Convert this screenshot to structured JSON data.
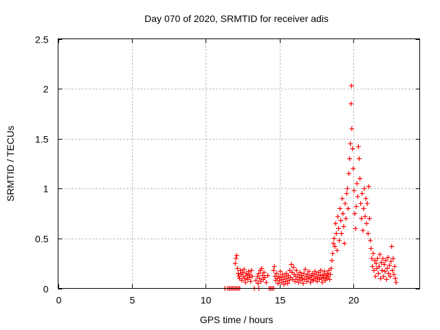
{
  "chart_data": {
    "type": "scatter",
    "title": "Day 070 of 2020, SRMTID for receiver adis",
    "xlabel": "GPS time / hours",
    "ylabel": "SRMTID / TECUs",
    "xlim": [
      0,
      24.5
    ],
    "ylim": [
      0,
      2.5
    ],
    "x_ticks": [
      0,
      5,
      10,
      15,
      20
    ],
    "x_tick_labels": [
      "0",
      "5",
      "10",
      "15",
      "20"
    ],
    "y_ticks": [
      0,
      0.5,
      1,
      1.5,
      2,
      2.5
    ],
    "y_tick_labels": [
      "0",
      "0.5",
      "1",
      "1.5",
      "2",
      "2.5"
    ],
    "grid": true,
    "marker": "+",
    "marker_color": "#ff0000",
    "series": [
      {
        "name": "SRMTID",
        "points": [
          [
            11.3,
            0.0
          ],
          [
            11.5,
            0.0
          ],
          [
            11.6,
            0.0
          ],
          [
            11.7,
            0.0
          ],
          [
            11.8,
            0.0
          ],
          [
            11.9,
            0.0
          ],
          [
            12.0,
            0.0
          ],
          [
            12.1,
            0.0
          ],
          [
            12.2,
            0.0
          ],
          [
            12.3,
            0.0
          ],
          [
            13.3,
            0.0
          ],
          [
            13.6,
            0.0
          ],
          [
            14.3,
            0.0
          ],
          [
            14.4,
            0.0
          ],
          [
            14.5,
            0.0
          ],
          [
            14.6,
            0.0
          ],
          [
            12.0,
            0.25
          ],
          [
            12.05,
            0.3
          ],
          [
            12.1,
            0.33
          ],
          [
            12.15,
            0.2
          ],
          [
            12.2,
            0.15
          ],
          [
            12.25,
            0.12
          ],
          [
            12.3,
            0.1
          ],
          [
            12.35,
            0.18
          ],
          [
            12.4,
            0.14
          ],
          [
            12.45,
            0.08
          ],
          [
            12.5,
            0.16
          ],
          [
            12.55,
            0.12
          ],
          [
            12.6,
            0.19
          ],
          [
            12.65,
            0.1
          ],
          [
            12.7,
            0.06
          ],
          [
            12.75,
            0.15
          ],
          [
            12.8,
            0.13
          ],
          [
            12.85,
            0.09
          ],
          [
            12.9,
            0.17
          ],
          [
            12.95,
            0.11
          ],
          [
            13.0,
            0.14
          ],
          [
            13.05,
            0.07
          ],
          [
            13.1,
            0.18
          ],
          [
            13.15,
            0.12
          ],
          [
            13.4,
            0.08
          ],
          [
            13.5,
            0.12
          ],
          [
            13.55,
            0.05
          ],
          [
            13.6,
            0.15
          ],
          [
            13.65,
            0.1
          ],
          [
            13.7,
            0.18
          ],
          [
            13.75,
            0.07
          ],
          [
            13.8,
            0.2
          ],
          [
            13.85,
            0.13
          ],
          [
            13.9,
            0.09
          ],
          [
            13.95,
            0.16
          ],
          [
            14.0,
            0.11
          ],
          [
            14.1,
            0.06
          ],
          [
            14.2,
            0.13
          ],
          [
            14.6,
            0.18
          ],
          [
            14.65,
            0.22
          ],
          [
            14.7,
            0.12
          ],
          [
            14.75,
            0.08
          ],
          [
            14.8,
            0.15
          ],
          [
            14.85,
            0.1
          ],
          [
            14.9,
            0.05
          ],
          [
            14.95,
            0.12
          ],
          [
            15.0,
            0.08
          ],
          [
            15.05,
            0.17
          ],
          [
            15.1,
            0.11
          ],
          [
            15.15,
            0.06
          ],
          [
            15.2,
            0.14
          ],
          [
            15.25,
            0.09
          ],
          [
            15.3,
            0.04
          ],
          [
            15.35,
            0.12
          ],
          [
            15.4,
            0.07
          ],
          [
            15.45,
            0.15
          ],
          [
            15.5,
            0.1
          ],
          [
            15.55,
            0.05
          ],
          [
            15.6,
            0.13
          ],
          [
            15.65,
            0.08
          ],
          [
            15.7,
            0.18
          ],
          [
            15.75,
            0.11
          ],
          [
            15.8,
            0.24
          ],
          [
            15.85,
            0.16
          ],
          [
            15.9,
            0.09
          ],
          [
            15.95,
            0.21
          ],
          [
            16.0,
            0.14
          ],
          [
            16.05,
            0.07
          ],
          [
            16.1,
            0.12
          ],
          [
            16.15,
            0.18
          ],
          [
            16.2,
            0.09
          ],
          [
            16.25,
            0.14
          ],
          [
            16.3,
            0.06
          ],
          [
            16.35,
            0.11
          ],
          [
            16.4,
            0.16
          ],
          [
            16.45,
            0.08
          ],
          [
            16.5,
            0.13
          ],
          [
            16.55,
            0.1
          ],
          [
            16.6,
            0.05
          ],
          [
            16.65,
            0.15
          ],
          [
            16.7,
            0.09
          ],
          [
            16.75,
            0.19
          ],
          [
            16.8,
            0.12
          ],
          [
            16.85,
            0.07
          ],
          [
            16.9,
            0.14
          ],
          [
            16.95,
            0.1
          ],
          [
            17.0,
            0.17
          ],
          [
            17.05,
            0.11
          ],
          [
            17.1,
            0.06
          ],
          [
            17.15,
            0.13
          ],
          [
            17.2,
            0.09
          ],
          [
            17.25,
            0.15
          ],
          [
            17.3,
            0.08
          ],
          [
            17.35,
            0.12
          ],
          [
            17.4,
            0.17
          ],
          [
            17.45,
            0.1
          ],
          [
            17.5,
            0.14
          ],
          [
            17.55,
            0.07
          ],
          [
            17.6,
            0.11
          ],
          [
            17.65,
            0.16
          ],
          [
            17.7,
            0.09
          ],
          [
            17.75,
            0.13
          ],
          [
            17.8,
            0.18
          ],
          [
            17.85,
            0.1
          ],
          [
            17.9,
            0.06
          ],
          [
            17.95,
            0.14
          ],
          [
            18.0,
            0.11
          ],
          [
            18.05,
            0.17
          ],
          [
            18.1,
            0.08
          ],
          [
            18.15,
            0.13
          ],
          [
            18.2,
            0.1
          ],
          [
            18.25,
            0.15
          ],
          [
            18.3,
            0.12
          ],
          [
            18.35,
            0.18
          ],
          [
            18.4,
            0.09
          ],
          [
            18.45,
            0.14
          ],
          [
            18.5,
            0.2
          ],
          [
            18.55,
            0.28
          ],
          [
            18.6,
            0.35
          ],
          [
            18.65,
            0.45
          ],
          [
            18.7,
            0.5
          ],
          [
            18.75,
            0.42
          ],
          [
            18.8,
            0.65
          ],
          [
            18.85,
            0.55
          ],
          [
            18.9,
            0.38
          ],
          [
            18.95,
            0.72
          ],
          [
            19.0,
            0.6
          ],
          [
            19.05,
            0.48
          ],
          [
            19.1,
            0.8
          ],
          [
            19.15,
            0.68
          ],
          [
            19.2,
            0.55
          ],
          [
            19.25,
            0.9
          ],
          [
            19.3,
            0.75
          ],
          [
            19.35,
            0.62
          ],
          [
            19.4,
            0.45
          ],
          [
            19.45,
            0.85
          ],
          [
            19.5,
            0.7
          ],
          [
            19.55,
            0.95
          ],
          [
            19.6,
            1.0
          ],
          [
            19.65,
            0.8
          ],
          [
            19.7,
            1.15
          ],
          [
            19.75,
            1.3
          ],
          [
            19.8,
            1.45
          ],
          [
            19.85,
            1.85
          ],
          [
            19.88,
            2.03
          ],
          [
            19.9,
            1.6
          ],
          [
            19.95,
            1.4
          ],
          [
            20.0,
            1.2
          ],
          [
            20.05,
            0.98
          ],
          [
            20.1,
            0.75
          ],
          [
            20.15,
            0.6
          ],
          [
            20.2,
            0.82
          ],
          [
            20.25,
            1.05
          ],
          [
            20.3,
            0.92
          ],
          [
            20.35,
            1.42
          ],
          [
            20.4,
            1.3
          ],
          [
            20.45,
            1.1
          ],
          [
            20.5,
            0.85
          ],
          [
            20.55,
            0.7
          ],
          [
            20.6,
            0.95
          ],
          [
            20.65,
            0.58
          ],
          [
            20.7,
            0.8
          ],
          [
            20.75,
            1.0
          ],
          [
            20.8,
            0.72
          ],
          [
            20.85,
            0.9
          ],
          [
            20.9,
            0.65
          ],
          [
            20.95,
            0.85
          ],
          [
            21.0,
            0.55
          ],
          [
            21.05,
            1.02
          ],
          [
            21.1,
            0.7
          ],
          [
            21.15,
            0.48
          ],
          [
            21.2,
            0.4
          ],
          [
            21.25,
            0.3
          ],
          [
            21.3,
            0.22
          ],
          [
            21.35,
            0.35
          ],
          [
            21.4,
            0.18
          ],
          [
            21.45,
            0.28
          ],
          [
            21.5,
            0.12
          ],
          [
            21.55,
            0.25
          ],
          [
            21.6,
            0.2
          ],
          [
            21.65,
            0.3
          ],
          [
            21.7,
            0.15
          ],
          [
            21.75,
            0.22
          ],
          [
            21.8,
            0.34
          ],
          [
            21.85,
            0.1
          ],
          [
            21.9,
            0.26
          ],
          [
            21.95,
            0.18
          ],
          [
            22.0,
            0.3
          ],
          [
            22.05,
            0.12
          ],
          [
            22.1,
            0.24
          ],
          [
            22.15,
            0.17
          ],
          [
            22.2,
            0.28
          ],
          [
            22.25,
            0.09
          ],
          [
            22.3,
            0.2
          ],
          [
            22.35,
            0.31
          ],
          [
            22.4,
            0.15
          ],
          [
            22.45,
            0.23
          ],
          [
            22.5,
            0.12
          ],
          [
            22.55,
            0.27
          ],
          [
            22.6,
            0.42
          ],
          [
            22.65,
            0.18
          ],
          [
            22.7,
            0.3
          ],
          [
            22.75,
            0.14
          ],
          [
            22.8,
            0.22
          ],
          [
            22.85,
            0.1
          ],
          [
            22.9,
            0.06
          ]
        ]
      }
    ]
  }
}
